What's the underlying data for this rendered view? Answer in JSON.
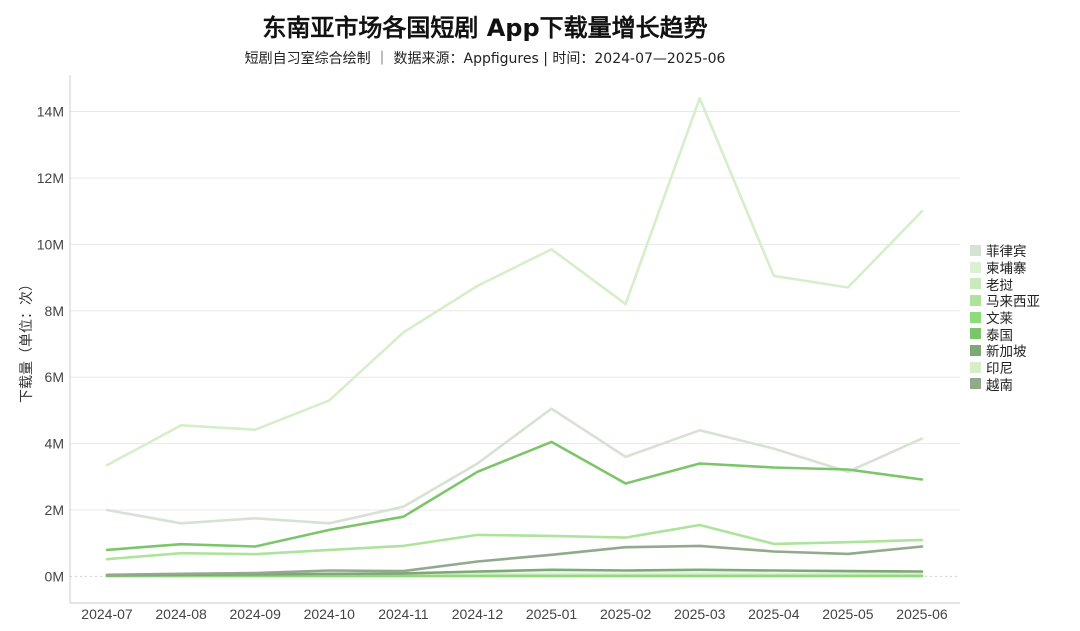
{
  "chart_data": {
    "type": "line",
    "title": "东南亚市场各国短剧 App下载量增长趋势",
    "subtitle": "短剧自习室综合绘制 ｜ 数据来源：Appfigures | 时间：2024-07—2025-06",
    "ylabel": "下载量（单位：次）",
    "xlabel": "",
    "ylim": [
      -0.8,
      15.1
    ],
    "yticks": [
      0,
      2,
      4,
      6,
      8,
      10,
      12,
      14
    ],
    "ytick_labels": [
      "0M",
      "2M",
      "4M",
      "6M",
      "8M",
      "10M",
      "12M",
      "14M"
    ],
    "x": [
      "2024-07",
      "2024-08",
      "2024-09",
      "2024-10",
      "2024-11",
      "2024-12",
      "2025-01",
      "2025-02",
      "2025-03",
      "2025-04",
      "2025-05",
      "2025-06"
    ],
    "grid": true,
    "legend_position": "right",
    "series": [
      {
        "name": "菲律宾",
        "color": "#d6e2d3",
        "values": [
          2.0,
          1.6,
          1.75,
          1.6,
          2.1,
          3.4,
          5.05,
          3.6,
          4.4,
          3.85,
          3.15,
          4.15
        ]
      },
      {
        "name": "柬埔寨",
        "color": "#dcf1d4",
        "values": [
          0.05,
          0.05,
          0.06,
          0.06,
          0.07,
          0.08,
          0.08,
          0.08,
          0.09,
          0.08,
          0.08,
          0.08
        ]
      },
      {
        "name": "老挝",
        "color": "#c9ebbc",
        "values": [
          0.02,
          0.02,
          0.02,
          0.02,
          0.02,
          0.03,
          0.03,
          0.03,
          0.03,
          0.03,
          0.03,
          0.03
        ]
      },
      {
        "name": "马来西亚",
        "color": "#aee39c",
        "values": [
          0.52,
          0.7,
          0.67,
          0.8,
          0.92,
          1.25,
          1.22,
          1.17,
          1.55,
          0.98,
          1.03,
          1.1
        ]
      },
      {
        "name": "文莱",
        "color": "#8fdb7c",
        "values": [
          0.01,
          0.01,
          0.01,
          0.01,
          0.01,
          0.01,
          0.01,
          0.01,
          0.01,
          0.01,
          0.01,
          0.01
        ]
      },
      {
        "name": "泰国",
        "color": "#7cc56b",
        "values": [
          0.8,
          0.97,
          0.9,
          1.4,
          1.8,
          3.15,
          4.05,
          2.8,
          3.4,
          3.28,
          3.22,
          2.92
        ]
      },
      {
        "name": "新加坡",
        "color": "#7fa877",
        "values": [
          0.03,
          0.05,
          0.06,
          0.08,
          0.09,
          0.15,
          0.2,
          0.18,
          0.2,
          0.18,
          0.16,
          0.15
        ]
      },
      {
        "name": "印尼",
        "color": "#d4efc9",
        "values": [
          3.35,
          4.55,
          4.42,
          5.3,
          7.35,
          8.75,
          9.85,
          8.2,
          14.4,
          9.05,
          8.7,
          11.0
        ]
      },
      {
        "name": "越南",
        "color": "#92aa8b",
        "values": [
          0.05,
          0.08,
          0.1,
          0.18,
          0.16,
          0.45,
          0.65,
          0.88,
          0.92,
          0.75,
          0.68,
          0.9
        ]
      }
    ]
  }
}
